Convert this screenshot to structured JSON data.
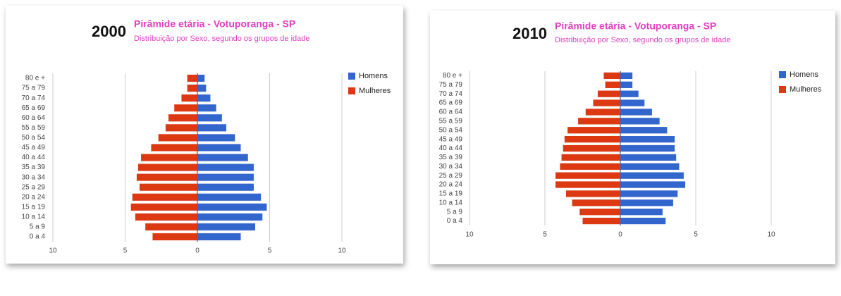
{
  "chart_data": [
    {
      "type": "pyramid",
      "year": "2000",
      "title": "Pirâmide etária - Votuporanga - SP",
      "subtitle": "Distribuição por Sexo, segundo os grupos de idade",
      "categories": [
        "0 a 4",
        "5 a 9",
        "10 a 14",
        "15 a 19",
        "20 a 24",
        "25 a 29",
        "30 a 34",
        "35 a 39",
        "40 a 44",
        "45 a 49",
        "50 a 54",
        "55 a 59",
        "60 a 64",
        "65 a 69",
        "70 a 74",
        "75 a 79",
        "80 e +"
      ],
      "series": [
        {
          "name": "Homens",
          "color": "#3366cc",
          "values": [
            3.0,
            4.0,
            4.5,
            4.8,
            4.4,
            3.9,
            3.9,
            3.9,
            3.5,
            3.0,
            2.6,
            2.0,
            1.7,
            1.3,
            0.9,
            0.6,
            0.5
          ]
        },
        {
          "name": "Mulheres",
          "color": "#dc3912",
          "values": [
            -3.1,
            -3.6,
            -4.3,
            -4.6,
            -4.5,
            -4.0,
            -4.2,
            -4.1,
            -3.9,
            -3.2,
            -2.7,
            -2.2,
            -2.0,
            -1.6,
            -1.1,
            -0.7,
            -0.7
          ]
        }
      ],
      "xlim": [
        -10,
        10
      ],
      "xticks": [
        {
          "value": -10,
          "label": "10"
        },
        {
          "value": -5,
          "label": "5"
        },
        0,
        5,
        10
      ],
      "grid": true,
      "legend": "right"
    },
    {
      "type": "pyramid",
      "year": "2010",
      "title": "Pirâmide etária - Votuporanga - SP",
      "subtitle": "Distribuição por Sexo, segundo os grupos de idade",
      "categories": [
        "0 a 4",
        "5 a 9",
        "10 a 14",
        "15 a 19",
        "20 a 24",
        "25 a 29",
        "30 a 34",
        "35 a 39",
        "40 a 44",
        "45 a 49",
        "50 a 54",
        "55 a 59",
        "60 a 64",
        "65 a 69",
        "70 a 74",
        "75 a 79",
        "80 e +"
      ],
      "series": [
        {
          "name": "Homens",
          "color": "#3366cc",
          "values": [
            3.0,
            2.8,
            3.5,
            3.8,
            4.3,
            4.2,
            3.9,
            3.7,
            3.6,
            3.6,
            3.1,
            2.6,
            2.1,
            1.6,
            1.2,
            0.8,
            0.8
          ]
        },
        {
          "name": "Mulheres",
          "color": "#dc3912",
          "values": [
            -2.5,
            -2.7,
            -3.2,
            -3.6,
            -4.3,
            -4.3,
            -4.0,
            -3.9,
            -3.8,
            -3.7,
            -3.5,
            -2.8,
            -2.3,
            -1.8,
            -1.5,
            -1.0,
            -1.1
          ]
        }
      ],
      "xlim": [
        -10,
        10
      ],
      "xticks": [
        {
          "value": -10,
          "label": "10"
        },
        {
          "value": -5,
          "label": "5"
        },
        0,
        5,
        10
      ],
      "grid": true,
      "legend": "right"
    }
  ]
}
